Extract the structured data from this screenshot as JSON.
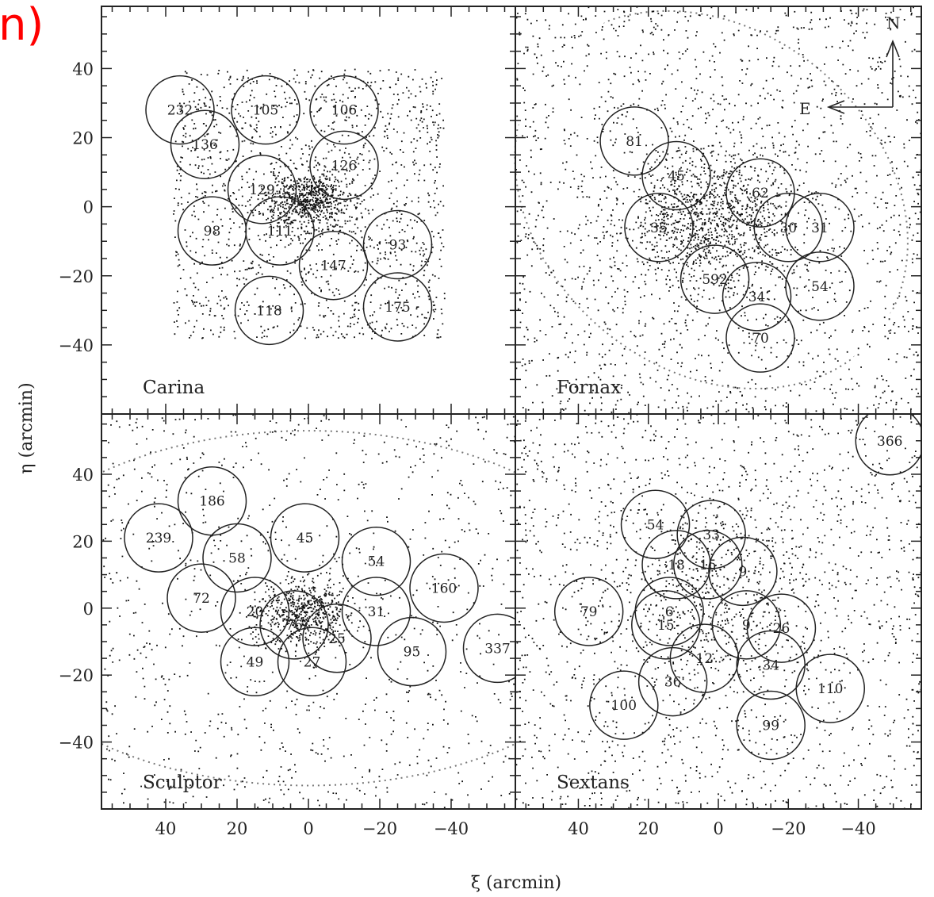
{
  "corner_text": "n)",
  "chart_data": {
    "type": "scatter",
    "layout": "2x2 grid of panels sharing axes",
    "xlabel": "ξ (arcmin)",
    "ylabel": "η (arcmin)",
    "xlim": [
      58,
      -58
    ],
    "ylim": [
      -60,
      58
    ],
    "x_ticks": [
      "40",
      "20",
      "0",
      "−20",
      "−40"
    ],
    "x_tick_values": [
      40,
      20,
      0,
      -20,
      -40
    ],
    "y_ticks": [
      "40",
      "20",
      "0",
      "−20",
      "−40"
    ],
    "y_tick_values": [
      40,
      20,
      0,
      -20,
      -40
    ],
    "compass": {
      "north": "N",
      "east": "E"
    },
    "panels": [
      {
        "name": "Carina",
        "stars": {
          "field_xrange": [
            38,
            -38
          ],
          "field_yrange": [
            -38,
            40
          ],
          "field_n": 1400,
          "core_center": [
            0,
            2
          ],
          "core_sigma": [
            6,
            4
          ],
          "core_n": 700
        },
        "fields": [
          {
            "label": "232",
            "x": 36,
            "y": 28
          },
          {
            "label": "105",
            "x": 12,
            "y": 28
          },
          {
            "label": "106",
            "x": -10,
            "y": 28
          },
          {
            "label": "136",
            "x": 29,
            "y": 18
          },
          {
            "label": "126",
            "x": -10,
            "y": 12
          },
          {
            "label": "129",
            "x": 13,
            "y": 5
          },
          {
            "label": "98",
            "x": 27,
            "y": -7
          },
          {
            "label": "111",
            "x": 8,
            "y": -7
          },
          {
            "label": "93",
            "x": -25,
            "y": -11
          },
          {
            "label": "147",
            "x": -7,
            "y": -17
          },
          {
            "label": "118",
            "x": 11,
            "y": -30
          },
          {
            "label": "175",
            "x": -25,
            "y": -29
          }
        ]
      },
      {
        "name": "Fornax",
        "ellipse": {
          "cx": 2,
          "cy": 2,
          "rx": 61,
          "ry": 49,
          "angle_deg": 40
        },
        "stars": {
          "field_xrange": [
            58,
            -58
          ],
          "field_yrange": [
            -60,
            58
          ],
          "field_n": 1700,
          "core_center": [
            2,
            -3
          ],
          "core_sigma": [
            12,
            10
          ],
          "core_n": 1100
        },
        "fields": [
          {
            "label": "81",
            "x": 24,
            "y": 19
          },
          {
            "label": "45",
            "x": 12,
            "y": 9
          },
          {
            "label": "62",
            "x": -12,
            "y": 4
          },
          {
            "label": "35",
            "x": 17,
            "y": -6
          },
          {
            "label": "30",
            "x": -20,
            "y": -6
          },
          {
            "label": "31",
            "x": -29,
            "y": -6
          },
          {
            "label": "592",
            "x": 1,
            "y": -21
          },
          {
            "label": "34",
            "x": -11,
            "y": -26
          },
          {
            "label": "54",
            "x": -29,
            "y": -23
          },
          {
            "label": "70",
            "x": -12,
            "y": -38
          }
        ]
      },
      {
        "name": "Sculptor",
        "ellipse": {
          "cx": 0,
          "cy": 0,
          "rx": 90,
          "ry": 53,
          "angle_deg": 0
        },
        "stars": {
          "field_xrange": [
            58,
            -58
          ],
          "field_yrange": [
            -60,
            58
          ],
          "field_n": 900,
          "core_center": [
            1,
            -1
          ],
          "core_sigma": [
            7,
            5
          ],
          "core_n": 600
        },
        "fields": [
          {
            "label": "186",
            "x": 27,
            "y": 32
          },
          {
            "label": "239",
            "x": 42,
            "y": 21
          },
          {
            "label": "45",
            "x": 1,
            "y": 21
          },
          {
            "label": "58",
            "x": 20,
            "y": 15
          },
          {
            "label": "54",
            "x": -19,
            "y": 14
          },
          {
            "label": "160",
            "x": -38,
            "y": 6
          },
          {
            "label": "72",
            "x": 30,
            "y": 3
          },
          {
            "label": "20",
            "x": 15,
            "y": -1
          },
          {
            "label": "31",
            "x": -19,
            "y": -1
          },
          {
            "label": "76",
            "x": 4,
            "y": -5
          },
          {
            "label": "25",
            "x": -8,
            "y": -9
          },
          {
            "label": "49",
            "x": 15,
            "y": -16
          },
          {
            "label": "27",
            "x": -1,
            "y": -16
          },
          {
            "label": "95",
            "x": -29,
            "y": -13
          },
          {
            "label": "337",
            "x": -53,
            "y": -12
          }
        ]
      },
      {
        "name": "Sextans",
        "stars": {
          "field_xrange": [
            58,
            -58
          ],
          "field_yrange": [
            -60,
            58
          ],
          "field_n": 1500,
          "core_center": [
            0,
            5
          ],
          "core_sigma": [
            16,
            14
          ],
          "core_n": 500
        },
        "fields": [
          {
            "label": "366",
            "x": -49,
            "y": 50
          },
          {
            "label": "54",
            "x": 18,
            "y": 25
          },
          {
            "label": "33",
            "x": 2,
            "y": 22
          },
          {
            "label": "18",
            "x": 12,
            "y": 13
          },
          {
            "label": "15",
            "x": 3,
            "y": 13
          },
          {
            "label": "9",
            "x": -7,
            "y": 11
          },
          {
            "label": "79",
            "x": 37,
            "y": -1
          },
          {
            "label": "6",
            "x": 14,
            "y": -1
          },
          {
            "label": "15",
            "x": 15,
            "y": -5
          },
          {
            "label": "9",
            "x": -8,
            "y": -5
          },
          {
            "label": "26",
            "x": -18,
            "y": -6
          },
          {
            "label": "12",
            "x": 4,
            "y": -15
          },
          {
            "label": "34",
            "x": -15,
            "y": -17
          },
          {
            "label": "36",
            "x": 13,
            "y": -22
          },
          {
            "label": "110",
            "x": -32,
            "y": -24
          },
          {
            "label": "100",
            "x": 27,
            "y": -29
          },
          {
            "label": "99",
            "x": -15,
            "y": -35
          }
        ]
      }
    ]
  }
}
